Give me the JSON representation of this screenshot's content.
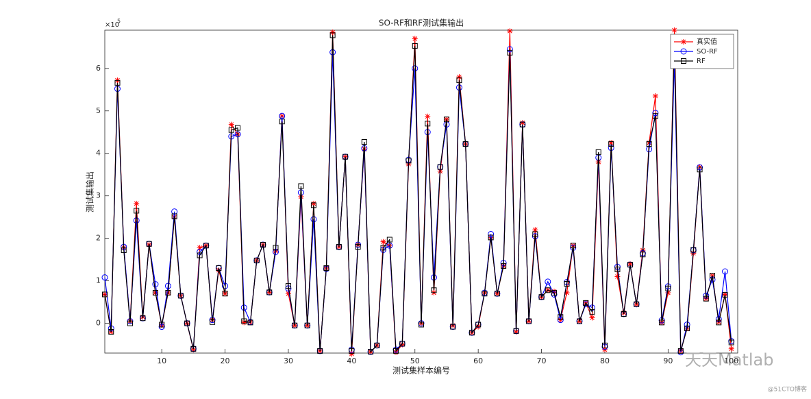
{
  "chart_data": {
    "type": "line",
    "title": "SO-RF和RF测试集输出",
    "x_label": "测试集样本编号",
    "y_label": "测试集输出",
    "y_exponent": {
      "base": "×10",
      "power": "5"
    },
    "x": [
      1,
      2,
      3,
      4,
      5,
      6,
      7,
      8,
      9,
      10,
      11,
      12,
      13,
      14,
      15,
      16,
      17,
      18,
      19,
      20,
      21,
      22,
      23,
      24,
      25,
      26,
      27,
      28,
      29,
      30,
      31,
      32,
      33,
      34,
      35,
      36,
      37,
      38,
      39,
      40,
      41,
      42,
      43,
      44,
      45,
      46,
      47,
      48,
      49,
      50,
      51,
      52,
      53,
      54,
      55,
      56,
      57,
      58,
      59,
      60,
      61,
      62,
      63,
      64,
      65,
      66,
      67,
      68,
      69,
      70,
      71,
      72,
      73,
      74,
      75,
      76,
      77,
      78,
      79,
      80,
      81,
      82,
      83,
      84,
      85,
      86,
      87,
      88,
      89,
      90,
      91,
      92,
      93,
      94,
      95,
      96,
      97,
      98,
      99,
      100
    ],
    "series": [
      {
        "name": "真实值",
        "color": "#ff0000",
        "marker": "star",
        "values": [
          0.68,
          -0.2,
          5.72,
          1.78,
          0.05,
          2.82,
          0.15,
          1.85,
          0.72,
          -0.05,
          0.72,
          2.5,
          0.65,
          0.0,
          -0.62,
          1.78,
          1.83,
          0.08,
          1.25,
          0.7,
          4.68,
          4.45,
          0.02,
          0.03,
          1.48,
          1.85,
          0.73,
          1.7,
          4.88,
          0.7,
          -0.05,
          2.98,
          -0.05,
          2.82,
          -0.65,
          1.3,
          6.85,
          1.8,
          3.92,
          -0.72,
          1.85,
          4.1,
          -0.67,
          -0.52,
          1.92,
          1.83,
          -0.68,
          -0.5,
          3.75,
          6.7,
          0.0,
          4.87,
          0.72,
          3.58,
          4.8,
          -0.05,
          5.8,
          4.22,
          -0.22,
          -0.08,
          0.72,
          2.02,
          0.7,
          1.35,
          6.88,
          -0.2,
          4.72,
          0.05,
          2.2,
          0.62,
          0.78,
          0.75,
          0.08,
          0.72,
          1.83,
          0.05,
          0.48,
          0.13,
          3.8,
          -0.62,
          4.25,
          1.1,
          0.25,
          1.4,
          0.45,
          1.72,
          4.25,
          5.35,
          0.02,
          0.72,
          6.9,
          -0.65,
          -0.12,
          1.65,
          3.68,
          0.58,
          1.12,
          0.03,
          0.68,
          -0.6
        ]
      },
      {
        "name": "SO-RF",
        "color": "#0000ff",
        "marker": "circle",
        "values": [
          1.08,
          -0.12,
          5.52,
          1.8,
          0.05,
          2.42,
          0.12,
          1.87,
          0.92,
          -0.08,
          0.88,
          2.63,
          0.65,
          0.0,
          -0.6,
          1.68,
          1.83,
          0.08,
          1.3,
          0.88,
          4.4,
          4.45,
          0.37,
          0.03,
          1.48,
          1.85,
          0.73,
          1.68,
          4.88,
          0.82,
          -0.05,
          3.08,
          -0.05,
          2.45,
          -0.65,
          1.28,
          6.38,
          1.8,
          3.92,
          -0.62,
          1.85,
          4.12,
          -0.67,
          -0.52,
          1.73,
          1.83,
          -0.62,
          -0.48,
          3.85,
          6.0,
          0.0,
          4.5,
          1.08,
          3.68,
          4.68,
          -0.08,
          5.55,
          4.22,
          -0.22,
          -0.03,
          0.72,
          2.1,
          0.7,
          1.42,
          6.45,
          -0.18,
          4.68,
          0.05,
          2.05,
          0.62,
          0.98,
          0.68,
          0.08,
          0.97,
          1.78,
          0.05,
          0.45,
          0.37,
          3.9,
          -0.55,
          4.13,
          1.33,
          0.22,
          1.38,
          0.45,
          1.65,
          4.1,
          4.95,
          0.07,
          0.87,
          6.2,
          -0.68,
          -0.03,
          1.72,
          3.67,
          0.65,
          1.03,
          0.1,
          1.22,
          -0.42
        ]
      },
      {
        "name": "RF",
        "color": "#000000",
        "marker": "square",
        "values": [
          0.68,
          -0.2,
          5.66,
          1.72,
          0.0,
          2.65,
          0.12,
          1.87,
          0.72,
          -0.03,
          0.72,
          2.52,
          0.65,
          0.0,
          -0.6,
          1.6,
          1.83,
          0.03,
          1.3,
          0.7,
          4.55,
          4.6,
          0.05,
          0.02,
          1.48,
          1.85,
          0.73,
          1.78,
          4.75,
          0.88,
          -0.05,
          3.23,
          -0.05,
          2.78,
          -0.65,
          1.3,
          6.78,
          1.8,
          3.92,
          -0.65,
          1.8,
          4.27,
          -0.67,
          -0.52,
          1.78,
          1.97,
          -0.65,
          -0.48,
          3.83,
          6.53,
          -0.03,
          4.7,
          0.78,
          3.68,
          4.8,
          -0.08,
          5.72,
          4.22,
          -0.22,
          -0.03,
          0.7,
          2.02,
          0.7,
          1.35,
          6.37,
          -0.18,
          4.68,
          0.05,
          2.1,
          0.62,
          0.78,
          0.72,
          0.15,
          0.93,
          1.83,
          0.05,
          0.48,
          0.27,
          4.03,
          -0.52,
          4.22,
          1.27,
          0.22,
          1.38,
          0.45,
          1.62,
          4.22,
          4.88,
          0.02,
          0.82,
          6.73,
          -0.65,
          -0.12,
          1.73,
          3.62,
          0.58,
          1.12,
          0.02,
          0.67,
          -0.45
        ]
      }
    ],
    "xlim": [
      1,
      101
    ],
    "xticks": [
      10,
      20,
      30,
      40,
      50,
      60,
      70,
      80,
      90,
      100
    ],
    "ylim": [
      -0.7,
      6.9
    ],
    "yticks": [
      0,
      1,
      2,
      3,
      4,
      5,
      6
    ],
    "grid": false,
    "legend": "top-right",
    "watermark": "天天Matlab",
    "watermark_small": "@51CTO博客"
  }
}
